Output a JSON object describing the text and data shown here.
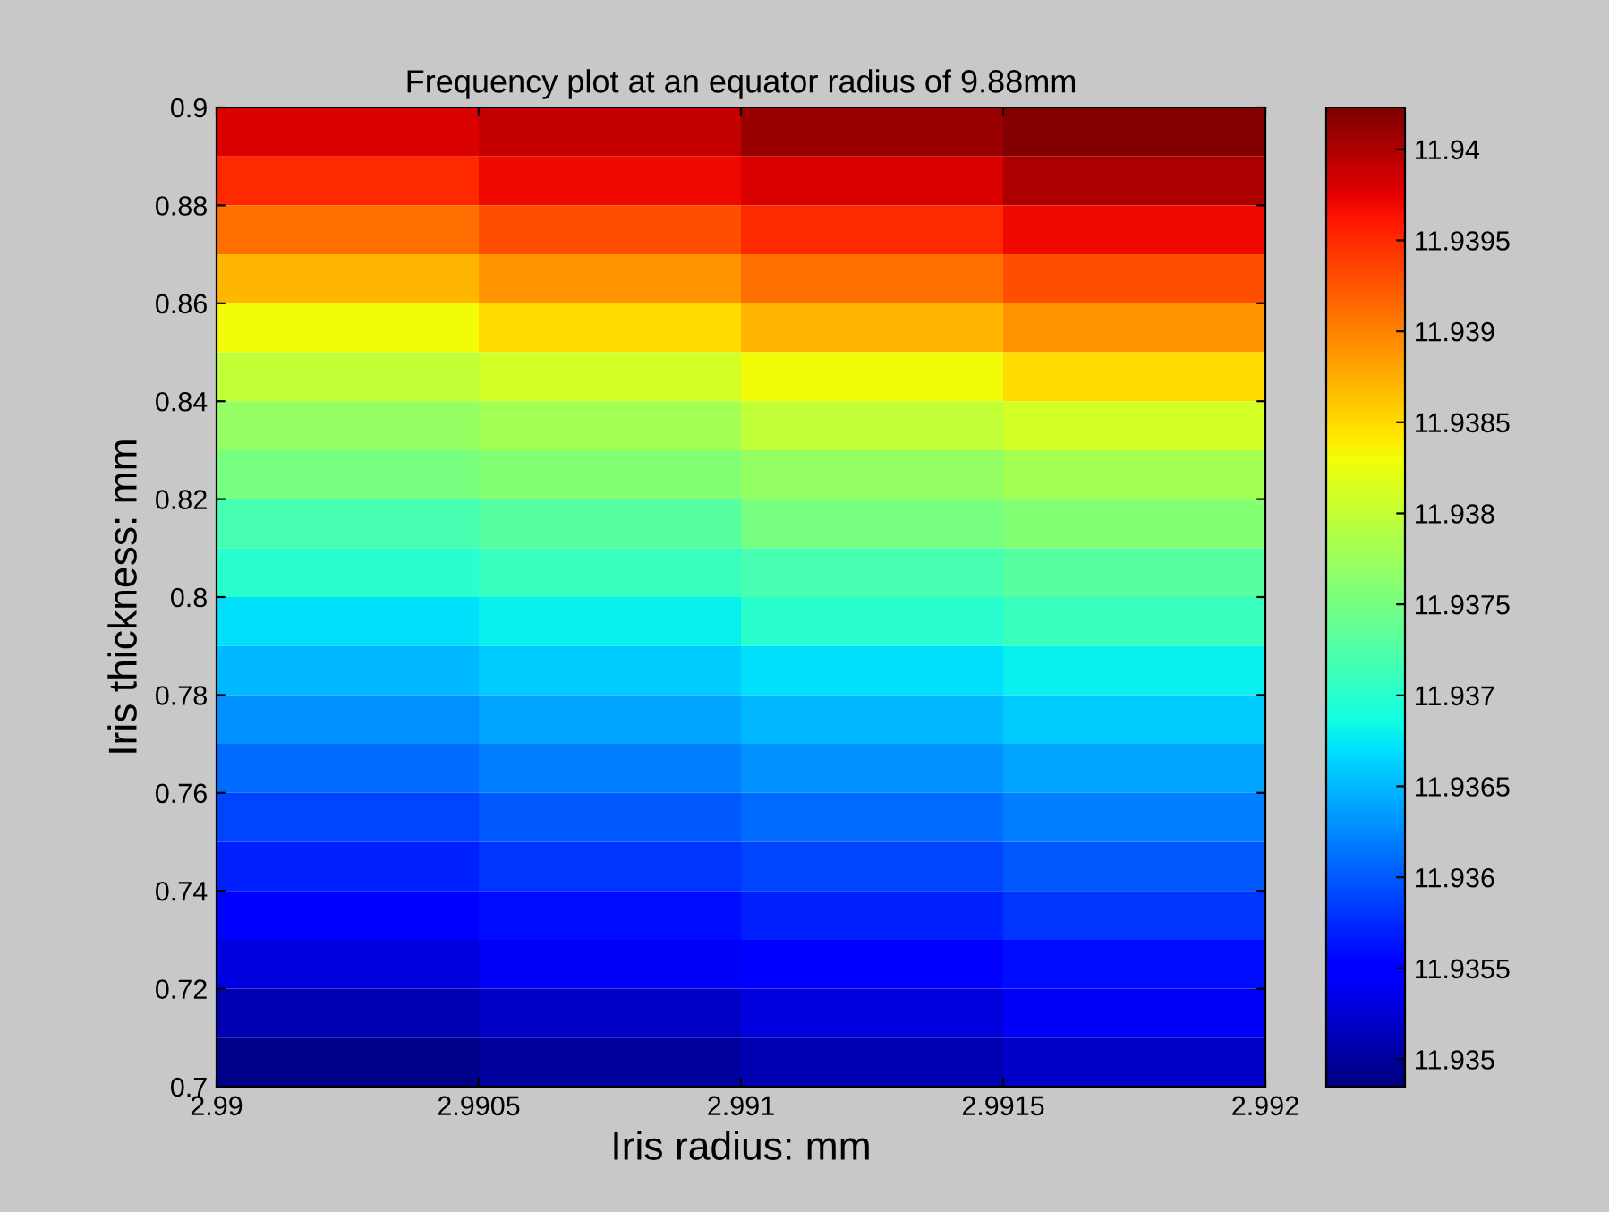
{
  "chart_data": {
    "type": "heatmap",
    "title": "Frequency plot at an equator radius of 9.88mm",
    "xlabel": "Iris radius: mm",
    "ylabel": "Iris thickness: mm",
    "xlim": [
      2.99,
      2.992
    ],
    "xticks": [
      2.99,
      2.9905,
      2.991,
      2.9915,
      2.992
    ],
    "ylim": [
      0.7,
      0.9
    ],
    "yticks": [
      0.7,
      0.72,
      0.74,
      0.76,
      0.78,
      0.8,
      0.82,
      0.84,
      0.86,
      0.88,
      0.9
    ],
    "clim": [
      11.93485,
      11.94023
    ],
    "cticks": [
      11.935,
      11.9355,
      11.936,
      11.9365,
      11.937,
      11.9375,
      11.938,
      11.9385,
      11.939,
      11.9395,
      11.94
    ],
    "cells": [
      [
        11.9398,
        11.9399,
        11.9401,
        11.9402
      ],
      [
        11.9395,
        11.9397,
        11.9398,
        11.94
      ],
      [
        11.9391,
        11.9393,
        11.9395,
        11.9397
      ],
      [
        11.9387,
        11.9389,
        11.9391,
        11.9393
      ],
      [
        11.9383,
        11.9385,
        11.9387,
        11.9389
      ],
      [
        11.938,
        11.9381,
        11.9383,
        11.9385
      ],
      [
        11.9377,
        11.9378,
        11.938,
        11.9381
      ],
      [
        11.9375,
        11.9376,
        11.9377,
        11.9378
      ],
      [
        11.9372,
        11.9373,
        11.9375,
        11.9376
      ],
      [
        11.937,
        11.9371,
        11.9372,
        11.9373
      ],
      [
        11.9367,
        11.9368,
        11.937,
        11.9371
      ],
      [
        11.9365,
        11.9366,
        11.9367,
        11.9368
      ],
      [
        11.9363,
        11.9364,
        11.9365,
        11.9366
      ],
      [
        11.9361,
        11.9362,
        11.9363,
        11.9364
      ],
      [
        11.9359,
        11.936,
        11.9361,
        11.9362
      ],
      [
        11.9357,
        11.9358,
        11.9359,
        11.936
      ],
      [
        11.9355,
        11.9356,
        11.9357,
        11.9358
      ],
      [
        11.9353,
        11.9354,
        11.9355,
        11.9356
      ],
      [
        11.9351,
        11.9352,
        11.9353,
        11.9354
      ],
      [
        11.9349,
        11.935,
        11.9351,
        11.9352
      ]
    ]
  }
}
